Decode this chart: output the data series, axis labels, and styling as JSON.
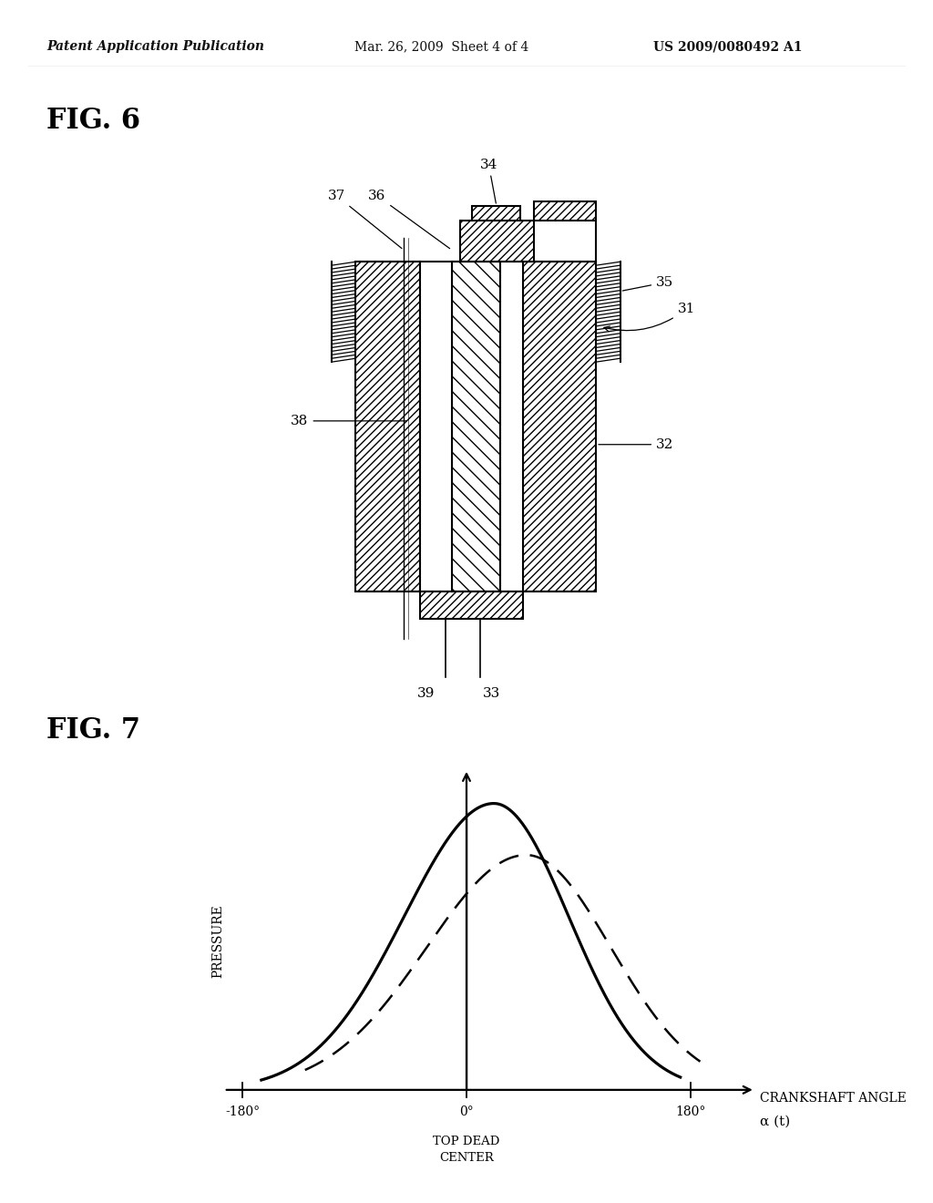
{
  "bg_color": "#ffffff",
  "header_left": "Patent Application Publication",
  "header_mid": "Mar. 26, 2009  Sheet 4 of 4",
  "header_right": "US 2009/0080492 A1",
  "fig6_label": "FIG. 6",
  "fig7_label": "FIG. 7",
  "fig7_xlabel": "CRANKSHAFT ANGLE",
  "fig7_xlabel2": "α (t)",
  "fig7_ylabel": "PRESSURE",
  "fig7_x_tdc_label": "TOP DEAD\nCENTER",
  "label_fontsize": 11,
  "header_fontsize": 10,
  "fig_label_fontsize": 22
}
